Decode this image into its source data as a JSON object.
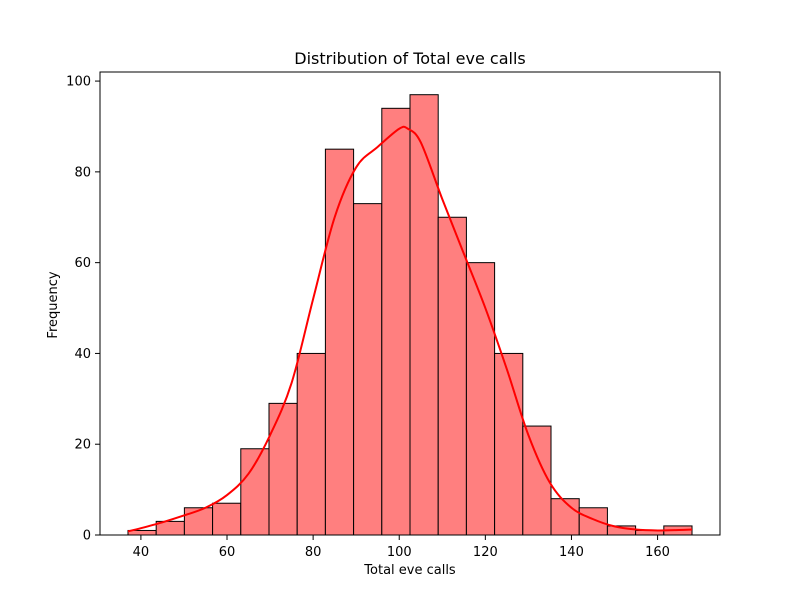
{
  "chart_data": {
    "type": "bar",
    "title": "Distribution of Total eve calls",
    "xlabel": "Total eve calls",
    "ylabel": "Frequency",
    "xlim": [
      30.5,
      174.5
    ],
    "ylim": [
      0,
      102
    ],
    "x_ticks": [
      40,
      60,
      80,
      100,
      120,
      140,
      160
    ],
    "y_ticks": [
      0,
      20,
      40,
      60,
      80,
      100
    ],
    "bin_edges": [
      37.0,
      43.55,
      50.1,
      56.65,
      63.2,
      69.75,
      76.3,
      82.85,
      89.4,
      95.95,
      102.5,
      109.05,
      115.6,
      122.15,
      128.7,
      135.25,
      141.8,
      148.35,
      154.9,
      161.45,
      168.0
    ],
    "values": [
      1,
      3,
      6,
      7,
      19,
      29,
      40,
      85,
      73,
      94,
      97,
      70,
      60,
      40,
      24,
      8,
      6,
      2,
      1,
      2
    ],
    "bar_color": "#ff7f7f",
    "bar_edge_color": "#000000",
    "kde": {
      "color": "#ff0000",
      "x": [
        37,
        40,
        45,
        50,
        55,
        60,
        65,
        70,
        75,
        80,
        85,
        90,
        95,
        100,
        102,
        105,
        110,
        115,
        120,
        125,
        130,
        135,
        140,
        145,
        150,
        155,
        160,
        165,
        168
      ],
      "y": [
        0.8,
        1.5,
        2.8,
        4.3,
        6.0,
        8.8,
        13.5,
        22.0,
        33.5,
        52.0,
        70.0,
        81.0,
        85.5,
        89.5,
        89.5,
        86.5,
        74.0,
        62.0,
        50.0,
        36.5,
        22.0,
        11.5,
        6.0,
        3.5,
        1.9,
        1.2,
        1.0,
        1.1,
        1.2
      ]
    },
    "grid": false,
    "legend": false
  }
}
